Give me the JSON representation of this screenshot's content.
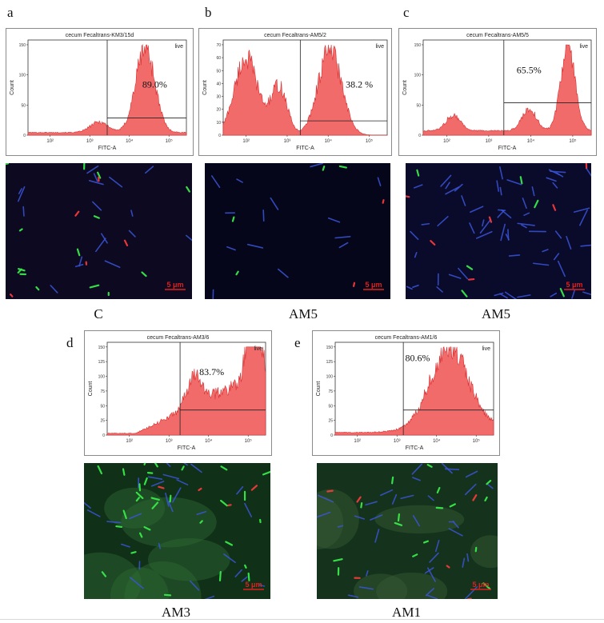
{
  "panels": [
    {
      "letter": "a",
      "title": "cecum Fecaltrans-KM3/15d",
      "gate_label": "live",
      "percent": "89.0%",
      "x_axis_label": "FITC-A",
      "y_axis_label": "Count",
      "y_ticks": [
        "0",
        "50",
        "100",
        "150"
      ],
      "x_ticks": [
        "10²",
        "10³",
        "10⁴",
        "10⁵"
      ],
      "caption": "C",
      "scale_bar": "5 μm"
    },
    {
      "letter": "b",
      "title": "cecum Fecaltrans-AM5/2",
      "gate_label": "live",
      "percent": "38.2 %",
      "x_axis_label": "FITC-A",
      "y_axis_label": "Count",
      "y_ticks": [
        "0",
        "10",
        "20",
        "30",
        "40",
        "50",
        "60",
        "70"
      ],
      "x_ticks": [
        "10²",
        "10³",
        "10⁴",
        "10⁵"
      ],
      "caption": "AM5",
      "scale_bar": "5 μm"
    },
    {
      "letter": "c",
      "title": "cecum Fecaltrans-AM5/5",
      "gate_label": "live",
      "percent": "65.5%",
      "x_axis_label": "FITC-A",
      "y_axis_label": "Count",
      "y_ticks": [
        "0",
        "50",
        "100",
        "150"
      ],
      "x_ticks": [
        "10²",
        "10³",
        "10⁴",
        "10⁵"
      ],
      "caption": "AM5",
      "scale_bar": "5 μm"
    },
    {
      "letter": "d",
      "title": "cecum Fecaltrans-AM3/6",
      "gate_label": "live",
      "percent": "83.7%",
      "x_axis_label": "FITC-A",
      "y_axis_label": "Count",
      "y_ticks": [
        "0",
        "25",
        "50",
        "75",
        "100",
        "125",
        "150"
      ],
      "x_ticks": [
        "10²",
        "10³",
        "10⁴",
        "10⁵"
      ],
      "caption": "AM3",
      "scale_bar": "5 μm"
    },
    {
      "letter": "e",
      "title": "cecum Fecaltrans-AM1/6",
      "gate_label": "live",
      "percent": "80.6%",
      "x_axis_label": "FITC-A",
      "y_axis_label": "Count",
      "y_ticks": [
        "0",
        "25",
        "50",
        "75",
        "100",
        "125",
        "150"
      ],
      "x_ticks": [
        "10²",
        "10³",
        "10⁴",
        "10⁵"
      ],
      "caption": "AM1",
      "scale_bar": "5 μm"
    }
  ],
  "colors": {
    "histogram_fill": "#f26b6b",
    "histogram_stroke": "#d93030",
    "gate_line": "#222222",
    "micro_background": "#0b0b2a",
    "scale_bar": "#e02020"
  }
}
